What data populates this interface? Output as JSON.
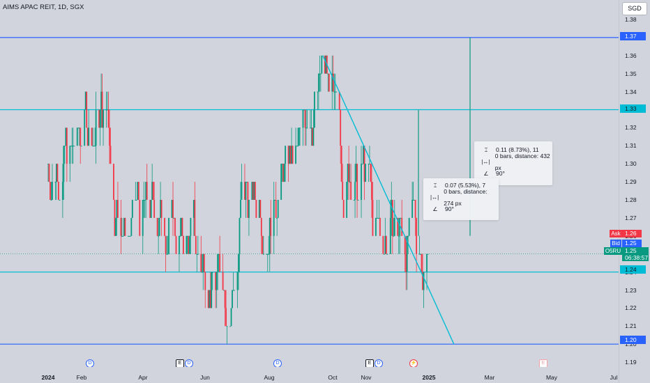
{
  "header": {
    "title": "AIMS APAC REIT, 1D, SGX"
  },
  "currency": {
    "label": "SGD"
  },
  "price_ticks": [
    "1.38",
    "1.37",
    "1.36",
    "1.35",
    "1.34",
    "1.33",
    "1.32",
    "1.31",
    "1.30",
    "1.29",
    "1.28",
    "1.27",
    "1.26",
    "1.25",
    "1.24",
    "1.23",
    "1.22",
    "1.21",
    "1.20",
    "1.19"
  ],
  "price_labels": {
    "line_137": "1.37",
    "line_133": "1.33",
    "line_124": "1.24",
    "line_120": "1.20",
    "ask_tag": "Ask",
    "ask_value": "1.26",
    "bid_tag": "Bid",
    "bid_value": "1.25",
    "symbol_tag": "O5RU",
    "last_value": "1.25",
    "countdown": "06:38:57"
  },
  "time_labels": [
    "2024",
    "Feb",
    "Apr",
    "Jun",
    "Aug",
    "Oct",
    "Nov",
    "2025",
    "Mar",
    "May",
    "Jul"
  ],
  "measure_tooltips": [
    {
      "change": "0.11 (8.73%), 11",
      "distance": "0 bars, distance: 432 px",
      "angle": "90°"
    },
    {
      "change": "0.07 (5.53%), 7",
      "distance": "0 bars, distance: 274 px",
      "angle": "90°"
    }
  ],
  "event_markers": [
    {
      "kind": "D",
      "name": "dividend"
    },
    {
      "kind": "E",
      "name": "earnings"
    },
    {
      "kind": "D",
      "name": "dividend"
    },
    {
      "kind": "D",
      "name": "dividend"
    },
    {
      "kind": "E",
      "name": "earnings"
    },
    {
      "kind": "D",
      "name": "dividend"
    },
    {
      "kind": "⚡",
      "name": "split"
    },
    {
      "kind": "E",
      "name": "earnings"
    }
  ],
  "colors": {
    "up": "#089981",
    "down": "#f23645",
    "hline_blue": "#2962ff",
    "hline_cyan": "#00bcd4",
    "trend": "#00bcd4",
    "ask": "#f23645",
    "bid": "#2962ff",
    "last": "#089981"
  },
  "chart_data": {
    "type": "candlestick",
    "symbol": "O5RU",
    "interval": "1D",
    "ylim": [
      1.19,
      1.38
    ],
    "horizontal_levels": [
      1.37,
      1.33,
      1.24,
      1.2
    ],
    "trendline": {
      "from": {
        "date": "2024-09-21",
        "price": 1.36
      },
      "to": {
        "date": "2025-01-25",
        "price": 1.2
      }
    },
    "monthly_closes": [
      {
        "month": "2024-01",
        "close": 1.31
      },
      {
        "month": "2024-02",
        "close": 1.33
      },
      {
        "month": "2024-03",
        "close": 1.27
      },
      {
        "month": "2024-04",
        "close": 1.27
      },
      {
        "month": "2024-05",
        "close": 1.25
      },
      {
        "month": "2024-06",
        "close": 1.24
      },
      {
        "month": "2024-07",
        "close": 1.28
      },
      {
        "month": "2024-08",
        "close": 1.3
      },
      {
        "month": "2024-09",
        "close": 1.34
      },
      {
        "month": "2024-10",
        "close": 1.29
      },
      {
        "month": "2024-11",
        "close": 1.26
      },
      {
        "month": "2024-12",
        "close": 1.25
      }
    ]
  }
}
